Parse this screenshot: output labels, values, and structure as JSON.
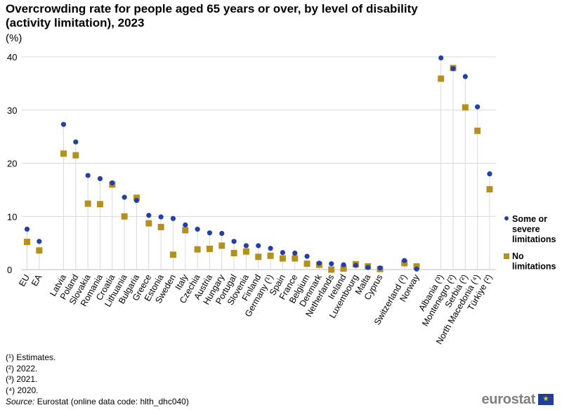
{
  "title": "Overcrowding rate for people aged 65 years or over, by level of disability (activity limitation), 2023",
  "unit": "(%)",
  "colors": {
    "series1": "#2440a8",
    "series2": "#b5901f",
    "grid": "#d9d9d9",
    "stem": "#d9d9d9"
  },
  "chart_data": {
    "type": "scatter",
    "title": "Overcrowding rate for people aged 65 years or over, by level of disability (activity limitation), 2023",
    "xlabel": "",
    "ylabel": "(%)",
    "ylim": [
      0,
      40
    ],
    "yticks": [
      "0",
      "10",
      "20",
      "30",
      "40"
    ],
    "grid": true,
    "legend_position": "right",
    "categories": [
      "EU",
      "EA",
      "",
      "Latvia",
      "Poland",
      "Slovakia",
      "Romania",
      "Croatia",
      "Lithuania",
      "Bulgaria",
      "Greece",
      "Estonia",
      "Sweden",
      "Italy",
      "Czechia",
      "Austria",
      "Hungary",
      "Portugal",
      "Slovenia",
      "Finland",
      "Germany (¹)",
      "Spain",
      "France",
      "Belgium",
      "Denmark",
      "Netherlands",
      "Ireland",
      "Luxembourg",
      "Malta",
      "Cyprus",
      "",
      "Switzerland (²)",
      "Norway",
      "",
      "Albania (³)",
      "Montenegro (²)",
      "Serbia (²)",
      "North Macedonia (⁴)",
      "Türkiye (²)"
    ],
    "series": [
      {
        "name": "Some or severe limitations",
        "marker": "circle",
        "values": [
          7.6,
          5.3,
          null,
          27.3,
          24.0,
          17.7,
          17.1,
          16.3,
          13.6,
          13.0,
          10.2,
          9.9,
          9.6,
          8.4,
          7.6,
          6.9,
          6.8,
          5.3,
          4.5,
          4.5,
          4.0,
          3.2,
          3.1,
          2.5,
          1.2,
          1.1,
          0.9,
          0.8,
          0.4,
          0.3,
          null,
          1.7,
          0.1,
          null,
          39.8,
          37.8,
          36.3,
          30.6,
          18.0
        ]
      },
      {
        "name": "No limitations",
        "marker": "square",
        "values": [
          5.2,
          3.6,
          null,
          21.8,
          21.5,
          12.4,
          12.3,
          16.0,
          10.0,
          13.5,
          8.7,
          8.0,
          2.8,
          7.4,
          3.8,
          3.9,
          4.5,
          3.1,
          3.4,
          2.4,
          2.6,
          2.1,
          2.1,
          1.1,
          0.9,
          0.0,
          0.2,
          1.0,
          0.6,
          0.1,
          null,
          1.2,
          0.6,
          null,
          35.9,
          37.9,
          30.5,
          26.1,
          15.1
        ]
      }
    ]
  },
  "legend": {
    "series1_label": [
      "Some or",
      "severe",
      "limitations"
    ],
    "series2_label": [
      "No",
      "limitations"
    ]
  },
  "notes": [
    "(¹) Estimates.",
    "(²) 2022.",
    "(³) 2021.",
    "(⁴) 2020."
  ],
  "source": {
    "label": "Source:",
    "text": "Eurostat (online data code: hlth_dhc040)"
  },
  "logo": {
    "text": "eurostat",
    "flag_icon": "eu-flag-icon"
  }
}
